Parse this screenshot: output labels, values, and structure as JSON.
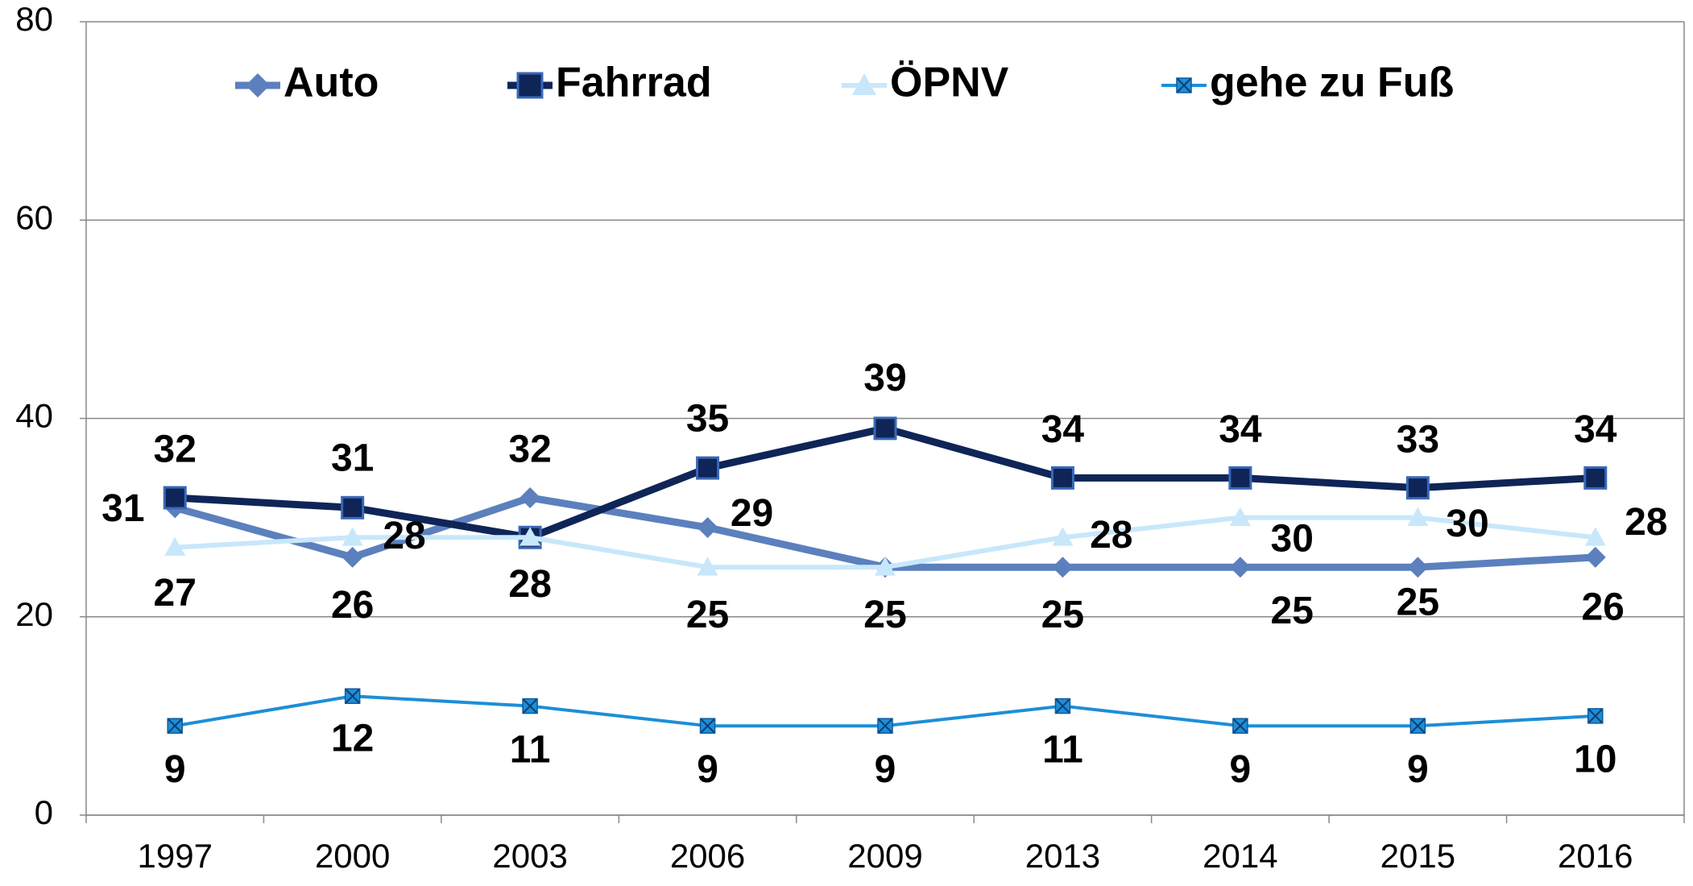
{
  "chart_data": {
    "type": "line",
    "categories": [
      "1997",
      "2000",
      "2003",
      "2006",
      "2009",
      "2013",
      "2014",
      "2015",
      "2016"
    ],
    "series": [
      {
        "name": "Auto",
        "color": "#5b80bd",
        "marker": "diamond",
        "values": [
          31,
          26,
          32,
          29,
          25,
          25,
          25,
          25,
          26
        ]
      },
      {
        "name": "Fahrrad",
        "color": "#0f2557",
        "marker": "square",
        "values": [
          32,
          31,
          28,
          35,
          39,
          34,
          34,
          33,
          34
        ]
      },
      {
        "name": "ÖPNV",
        "color": "#c8e7fb",
        "marker": "triangle",
        "values": [
          27,
          28,
          28,
          25,
          25,
          28,
          30,
          30,
          28
        ]
      },
      {
        "name": "gehe zu Fuß",
        "color": "#1c8ed8",
        "marker": "xsquare",
        "values": [
          9,
          12,
          11,
          9,
          9,
          11,
          9,
          9,
          10
        ]
      }
    ],
    "ylim": [
      0,
      80
    ],
    "yticks": [
      0,
      20,
      40,
      60,
      80
    ],
    "grid": true,
    "legend": "top"
  }
}
